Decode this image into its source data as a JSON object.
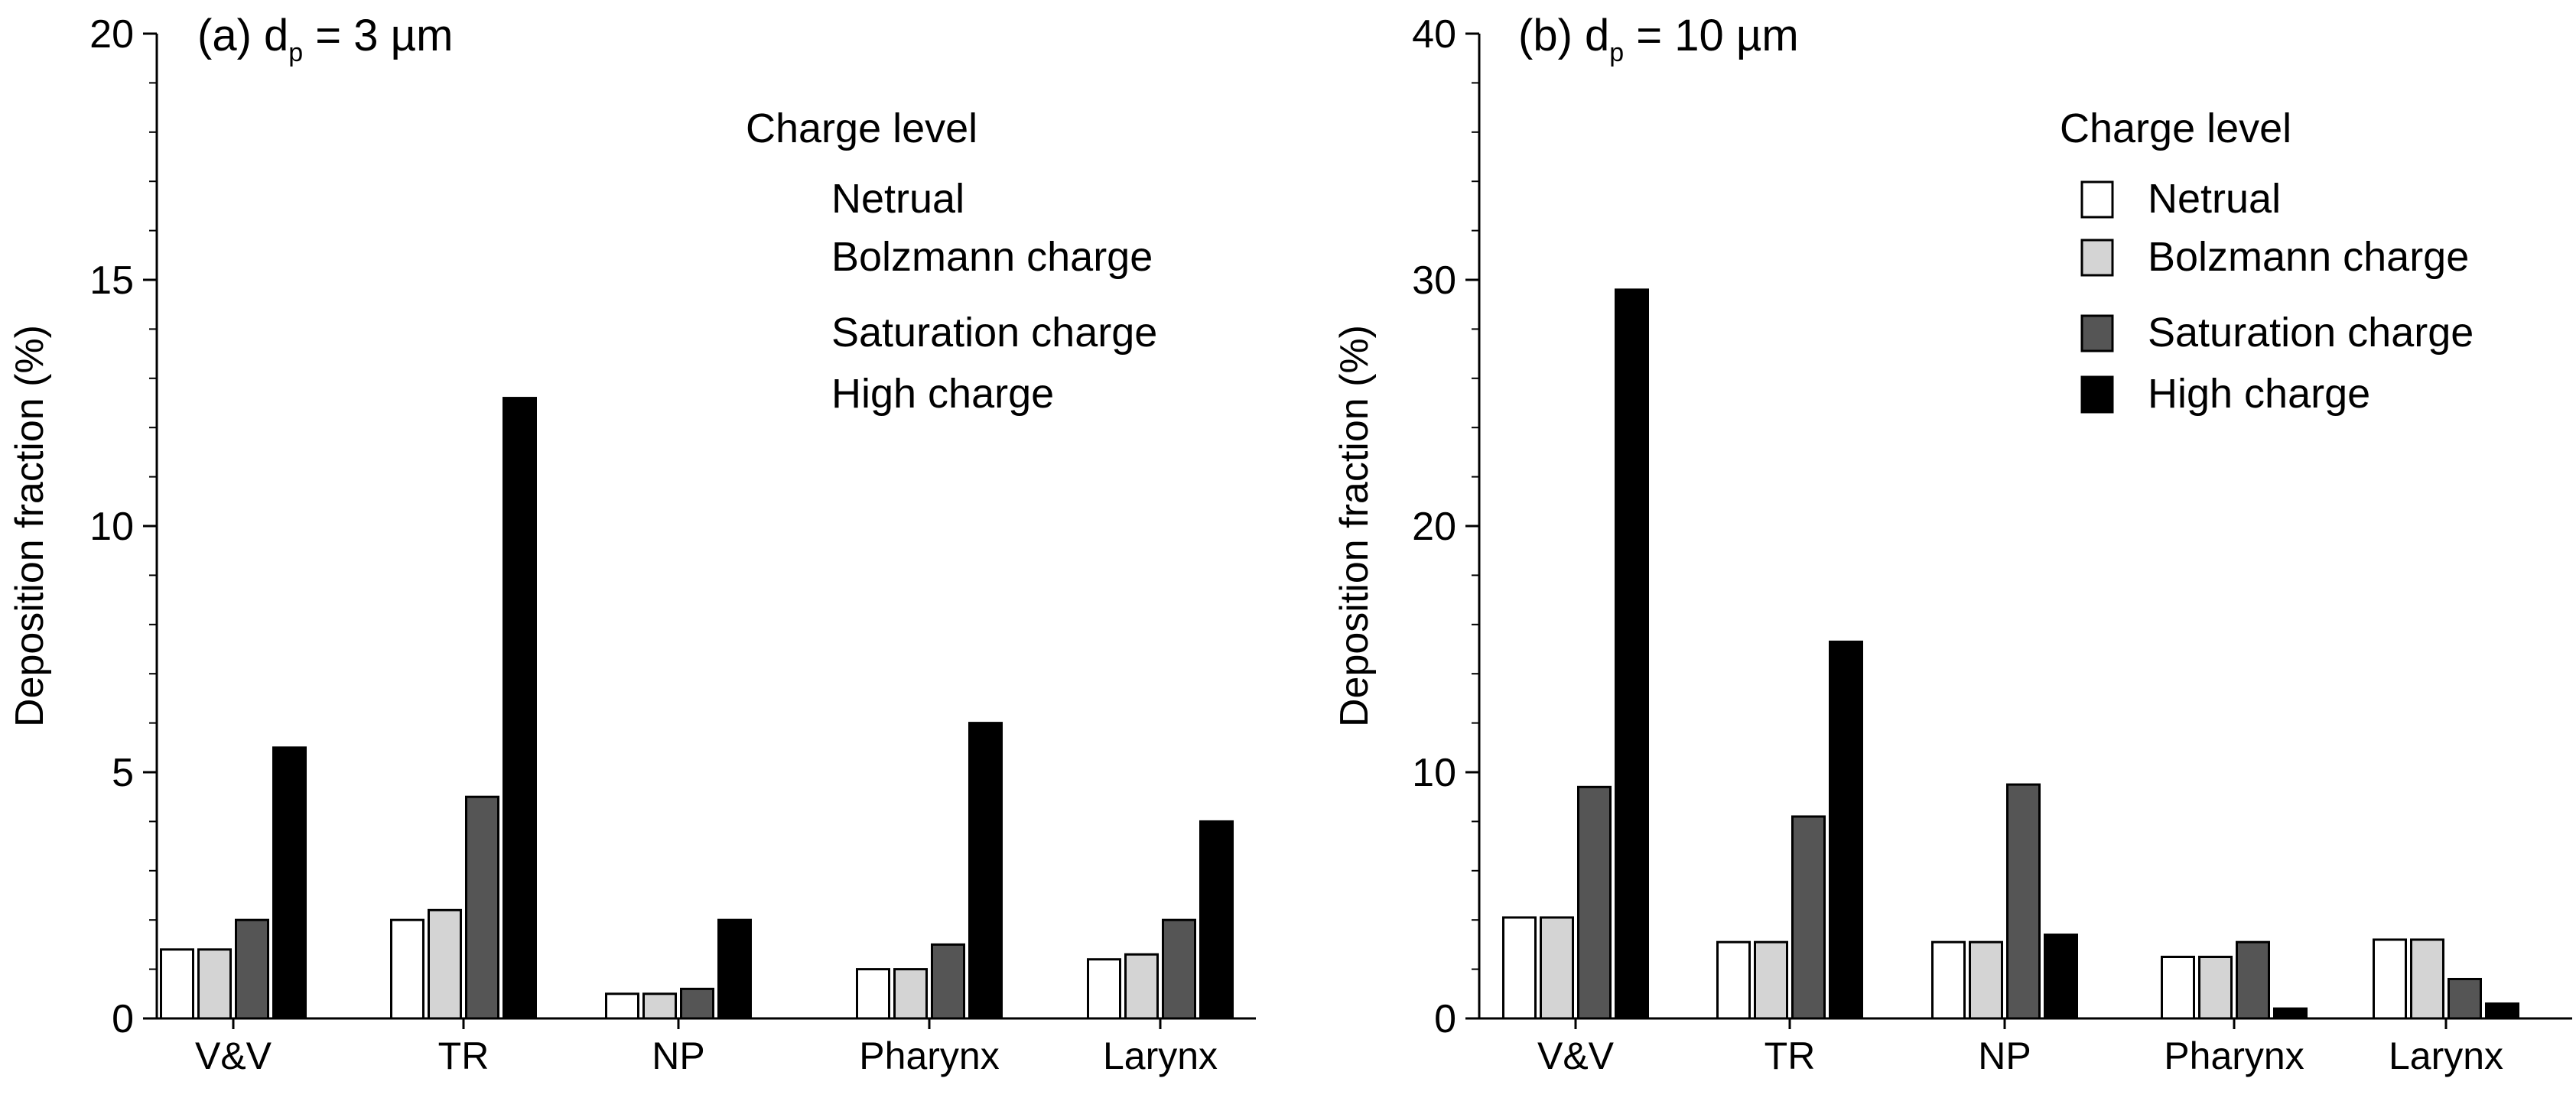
{
  "chart_data": [
    {
      "type": "bar",
      "title": "(a) d",
      "title_sub": "p",
      "title_rest": " = 3 µm",
      "ylabel": "Deposition fraction (%)",
      "xlabel": "",
      "ylim": [
        0,
        20
      ],
      "yticks": [
        "0",
        "5",
        "10",
        "15",
        "20"
      ],
      "ytick_values": [
        0,
        5,
        10,
        15,
        20
      ],
      "categories": [
        "V&V",
        "TR",
        "NP",
        "Pharynx",
        "Larynx"
      ],
      "legend": {
        "title": "Charge level",
        "placement": "top-right",
        "show_swatches": false
      },
      "series": [
        {
          "name": "Netrual",
          "color": "#ffffff",
          "values": [
            1.4,
            2.0,
            0.5,
            1.0,
            1.2
          ]
        },
        {
          "name": "Bolzmann charge",
          "color": "#d4d4d4",
          "values": [
            1.4,
            2.2,
            0.5,
            1.0,
            1.3
          ]
        },
        {
          "name": "Saturation charge",
          "color": "#555555",
          "values": [
            2.0,
            4.5,
            0.6,
            1.5,
            2.0
          ]
        },
        {
          "name": "High charge",
          "color": "#000000",
          "values": [
            5.5,
            12.6,
            2.0,
            6.0,
            4.0
          ]
        }
      ]
    },
    {
      "type": "bar",
      "title": "(b) d",
      "title_sub": "p",
      "title_rest": " = 10 µm",
      "ylabel": "Deposition fraction (%)",
      "xlabel": "",
      "ylim": [
        0,
        40
      ],
      "yticks": [
        "0",
        "10",
        "20",
        "30",
        "40"
      ],
      "ytick_values": [
        0,
        10,
        20,
        30,
        40
      ],
      "categories": [
        "V&V",
        "TR",
        "NP",
        "Pharynx",
        "Larynx"
      ],
      "legend": {
        "title": "Charge level",
        "placement": "top-right",
        "show_swatches": true
      },
      "series": [
        {
          "name": "Netrual",
          "color": "#ffffff",
          "values": [
            4.1,
            3.1,
            3.1,
            2.5,
            3.2
          ]
        },
        {
          "name": "Bolzmann charge",
          "color": "#d4d4d4",
          "values": [
            4.1,
            3.1,
            3.1,
            2.5,
            3.2
          ]
        },
        {
          "name": "Saturation charge",
          "color": "#555555",
          "values": [
            9.4,
            8.2,
            9.5,
            3.1,
            1.6
          ]
        },
        {
          "name": "High charge",
          "color": "#000000",
          "values": [
            29.6,
            15.3,
            3.4,
            0.4,
            0.6
          ]
        }
      ]
    }
  ]
}
